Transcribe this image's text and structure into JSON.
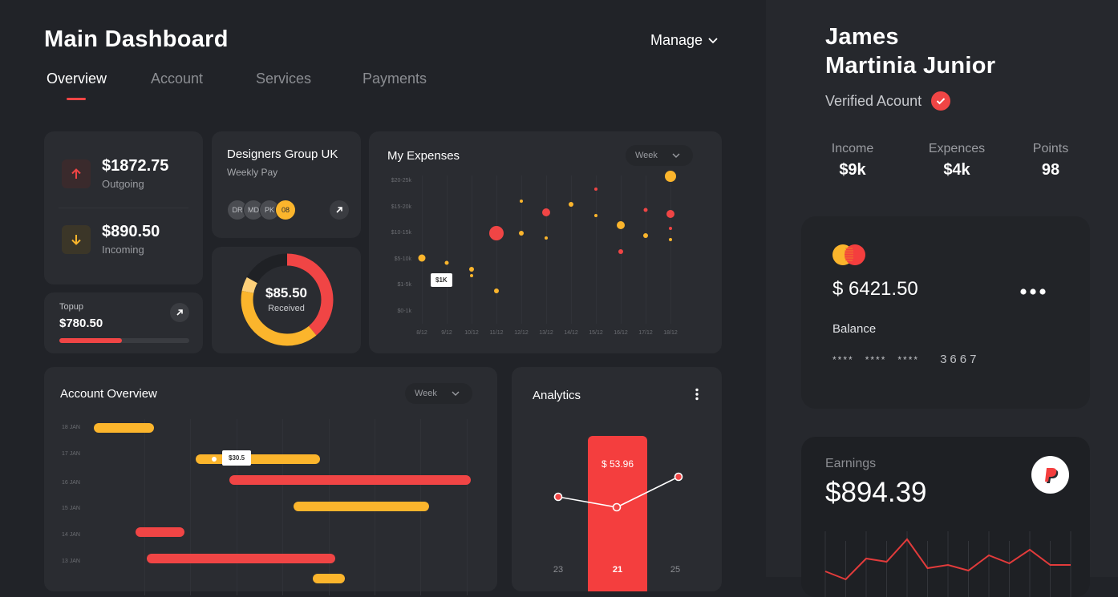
{
  "header": {
    "title": "Main Dashboard",
    "manage_label": "Manage",
    "tabs": [
      {
        "label": "Overview",
        "active": true
      },
      {
        "label": "Account",
        "active": false
      },
      {
        "label": "Services",
        "active": false
      },
      {
        "label": "Payments",
        "active": false
      }
    ]
  },
  "colors": {
    "accent_red": "#f04545",
    "accent_yellow": "#fbb52c",
    "background": "#212328",
    "card": "#2a2c31",
    "sidebar": "#26282d"
  },
  "stats": {
    "outgoing": {
      "value": "$1872.75",
      "label": "Outgoing",
      "icon": "arrow-up-icon"
    },
    "incoming": {
      "value": "$890.50",
      "label": "Incoming",
      "icon": "arrow-down-icon"
    }
  },
  "topup": {
    "label": "Topup",
    "value": "$780.50",
    "progress_pct": 48,
    "icon": "arrow-up-right-icon"
  },
  "designers_group": {
    "title": "Designers Group UK",
    "subtitle": "Weekly Pay",
    "avatars": [
      "DR",
      "MD",
      "PK"
    ],
    "extra_count": "08",
    "icon": "arrow-up-right-icon"
  },
  "received": {
    "value": "$85.50",
    "label": "Received"
  },
  "expenses": {
    "title": "My Expenses",
    "period": "Week",
    "tooltip": "$1K"
  },
  "account_overview": {
    "title": "Account Overview",
    "period": "Week",
    "tooltip": "$30.5"
  },
  "analytics": {
    "title": "Analytics",
    "highlight_value": "$ 53.96",
    "days": [
      "23",
      "21",
      "25"
    ],
    "menu_icon": "more-vertical-icon"
  },
  "profile": {
    "first_name": "James",
    "last_name": "Martinia Junior",
    "verified_label": "Verified Acount",
    "metrics": [
      {
        "label": "Income",
        "value": "$9k"
      },
      {
        "label": "Expences",
        "value": "$4k"
      },
      {
        "label": "Points",
        "value": "98"
      }
    ]
  },
  "card": {
    "balance": "$ 6421.50",
    "balance_label": "Balance",
    "masked_groups": [
      "****",
      "****",
      "****"
    ],
    "last4": "3667",
    "brand_icon": "mastercard-icon",
    "menu_icon": "more-horizontal-icon"
  },
  "earnings": {
    "label": "Earnings",
    "value": "$894.39",
    "brand_icon": "paypal-icon"
  },
  "chart_data": [
    {
      "type": "scatter",
      "title": "My Expenses",
      "xlabel": "",
      "ylabel": "",
      "x_categories": [
        "8/12",
        "9/12",
        "10/12",
        "11/12",
        "12/12",
        "13/12",
        "14/12",
        "15/12",
        "16/12",
        "17/12",
        "18/12"
      ],
      "y_categories": [
        "$0-1k",
        "$1-5k",
        "$5-10k",
        "$10-15k",
        "$15-20k",
        "$20-25k"
      ],
      "series": [
        {
          "name": "red",
          "color": "#f04545",
          "points": [
            {
              "x": "9/12",
              "y": "$1-5k",
              "size": 12
            },
            {
              "x": "11/12",
              "y": "$10-15k",
              "size": 18
            },
            {
              "x": "13/12",
              "y": "$15-20k",
              "size": 10
            },
            {
              "x": "14/12",
              "y": "$15-20k",
              "size": 5
            },
            {
              "x": "15/12",
              "y": "$20-25k",
              "size": 4
            },
            {
              "x": "16/12",
              "y": "$5-10k",
              "size": 6
            },
            {
              "x": "17/12",
              "y": "$15-20k",
              "size": 5
            },
            {
              "x": "18/12",
              "y": "$10-15k",
              "size": 4
            },
            {
              "x": "18/12",
              "y": "$15-20k",
              "size": 10
            }
          ]
        },
        {
          "name": "yellow",
          "color": "#fbb52c",
          "points": [
            {
              "x": "8/12",
              "y": "$5-10k",
              "size": 9
            },
            {
              "x": "9/12",
              "y": "$5-10k",
              "size": 5
            },
            {
              "x": "10/12",
              "y": "$5-10k",
              "size": 6
            },
            {
              "x": "10/12",
              "y": "$1-5k",
              "size": 4
            },
            {
              "x": "11/12",
              "y": "$1-5k",
              "size": 6
            },
            {
              "x": "12/12",
              "y": "$15-20k",
              "size": 4
            },
            {
              "x": "12/12",
              "y": "$10-15k",
              "size": 6
            },
            {
              "x": "13/12",
              "y": "$10-15k",
              "size": 4
            },
            {
              "x": "14/12",
              "y": "$15-20k",
              "size": 6
            },
            {
              "x": "15/12",
              "y": "$15-20k",
              "size": 4
            },
            {
              "x": "16/12",
              "y": "$10-15k",
              "size": 10
            },
            {
              "x": "17/12",
              "y": "$10-15k",
              "size": 6
            },
            {
              "x": "18/12",
              "y": "$20-25k",
              "size": 14
            },
            {
              "x": "18/12",
              "y": "$10-15k",
              "size": 4
            }
          ]
        }
      ],
      "annotations": [
        {
          "text": "$1K",
          "x": "9/12",
          "y": "$1-5k"
        }
      ]
    },
    {
      "type": "bar",
      "subtype": "gantt",
      "title": "Account Overview",
      "categories": [
        "18 JAN",
        "17 JAN",
        "16 JAN",
        "15 JAN",
        "14 JAN",
        "13 JAN"
      ],
      "bars": [
        {
          "category": "18 JAN",
          "start": 0.0,
          "end": 0.16,
          "color": "#fbb52c"
        },
        {
          "category": "17 JAN",
          "start": 0.27,
          "end": 0.6,
          "color": "#fbb52c"
        },
        {
          "category": "16 JAN",
          "start": 0.36,
          "end": 1.0,
          "color": "#f04545"
        },
        {
          "category": "15 JAN",
          "start": 0.53,
          "end": 0.89,
          "color": "#fbb52c"
        },
        {
          "category": "14 JAN",
          "start": 0.11,
          "end": 0.24,
          "color": "#f04545"
        },
        {
          "category": "13 JAN",
          "start": 0.14,
          "end": 0.64,
          "color": "#f04545"
        }
      ],
      "annotations": [
        {
          "text": "$30.5",
          "category": "17 JAN"
        }
      ]
    },
    {
      "type": "line",
      "title": "Analytics",
      "categories": [
        "23",
        "21",
        "25"
      ],
      "values": [
        620,
        633,
        595
      ],
      "highlight": {
        "category": "21",
        "value": "$ 53.96"
      }
    },
    {
      "type": "pie",
      "subtype": "donut",
      "title": "Received",
      "center_label": "$85.50",
      "slices": [
        {
          "name": "red",
          "value": 39,
          "color": "#f04545"
        },
        {
          "name": "yellow",
          "value": 39,
          "color": "#fbb52c"
        },
        {
          "name": "light-yellow",
          "value": 5,
          "color": "#fdd07a"
        },
        {
          "name": "remaining",
          "value": 17,
          "color": "#1f2125"
        }
      ]
    },
    {
      "type": "line",
      "title": "Earnings",
      "values": [
        32,
        22,
        48,
        44,
        72,
        36,
        40,
        33,
        52,
        42,
        59,
        40,
        40
      ]
    }
  ]
}
